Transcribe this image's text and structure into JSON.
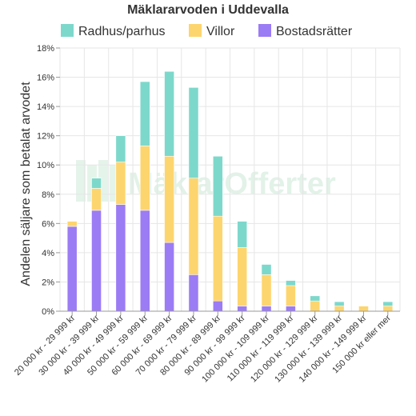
{
  "chart_data": {
    "type": "bar",
    "stacked": true,
    "title": "Mäklararvoden i Uddevalla",
    "ylabel": "Andelen säljare som betalat arvodet",
    "xlabel": "",
    "ylim": [
      0,
      18
    ],
    "ytick_labels": [
      "0%",
      "2%",
      "4%",
      "6%",
      "8%",
      "10%",
      "12%",
      "14%",
      "16%",
      "18%"
    ],
    "grid": true,
    "legend_position": "top",
    "watermark": "MäklarOfferter",
    "categories": [
      "20 000 kr - 29 999 kr",
      "30 000 kr - 39 999 kr",
      "40 000 kr - 49 999 kr",
      "50 000 kr - 59 999 kr",
      "60 000 kr - 69 999 kr",
      "70 000 kr - 79 999 kr",
      "80 000 kr - 89 999 kr",
      "90 000 kr - 99 999 kr",
      "100 000 kr - 109 999 kr",
      "110 000 kr - 119 999 kr",
      "120 000 kr - 129 999 kr",
      "130 000 kr - 139 999 kr",
      "140 000 kr - 149 999 kr",
      "150 000 kr eller mer"
    ],
    "series": [
      {
        "name": "Bostadsrätter",
        "color": "#9b7cf4",
        "values": [
          5.8,
          6.9,
          7.3,
          6.9,
          4.7,
          2.5,
          0.7,
          0.35,
          0.35,
          0.35,
          0,
          0,
          0,
          0
        ]
      },
      {
        "name": "Villor",
        "color": "#fdd56e",
        "values": [
          0.35,
          1.5,
          2.9,
          4.4,
          5.9,
          6.6,
          5.8,
          4.0,
          2.15,
          1.4,
          0.7,
          0.35,
          0.35,
          0.35
        ]
      },
      {
        "name": "Radhus/parhus",
        "color": "#7dd8cc",
        "values": [
          0,
          0.7,
          1.8,
          4.4,
          5.8,
          6.2,
          4.1,
          1.8,
          0.7,
          0.35,
          0.35,
          0.3,
          0,
          0.3
        ]
      }
    ],
    "legend_order": [
      "Radhus/parhus",
      "Villor",
      "Bostadsrätter"
    ]
  }
}
